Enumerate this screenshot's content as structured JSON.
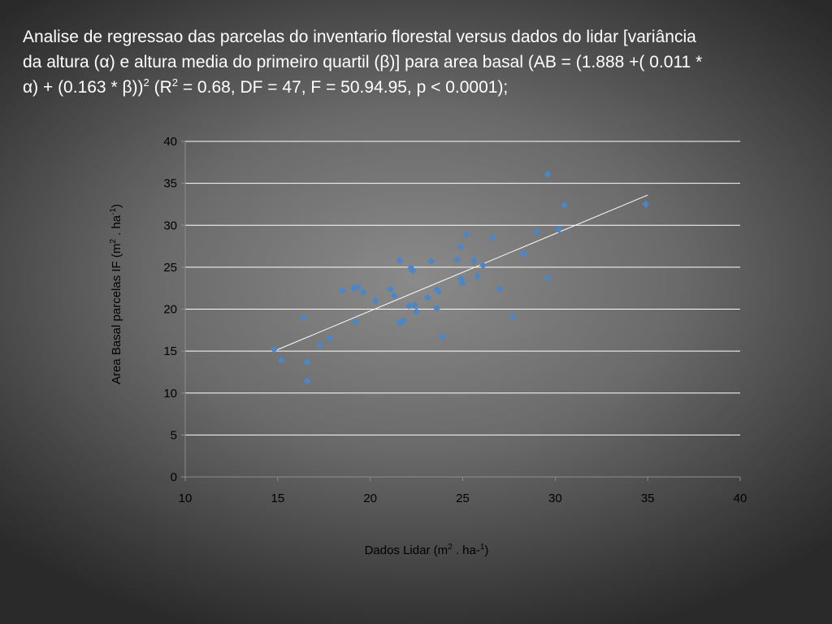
{
  "slide": {
    "title_line1": "Analise de regressao  das parcelas do inventario florestal  versus dados do lidar [variância",
    "title_line2": "da altura (α) e altura media do primeiro quartil (β)] para area basal (AB = (1.888 +( 0.011 *",
    "title_line3_a": "α) + (0.163 * β))",
    "title_line3_sup": "2",
    "title_line3_b": " (R",
    "title_line3_sup2": "2",
    "title_line3_c": " = 0.68, DF = 47, F = 50.94.95, p < 0.0001);"
  },
  "chart_data": {
    "type": "scatter",
    "title": "",
    "xlabel_main": "Dados Lidar  (m",
    "xlabel_sup1": "2",
    "xlabel_mid": " . ha-",
    "xlabel_sup2": "1",
    "xlabel_end": ")",
    "ylabel_main": "Area Basal  parcelas  IF  (m",
    "ylabel_sup1": "2",
    "ylabel_mid": " . ha",
    "ylabel_sup2": "-1",
    "ylabel_end": ")",
    "xlim": [
      10,
      40
    ],
    "ylim": [
      0,
      40
    ],
    "xticks": [
      10,
      15,
      20,
      25,
      30,
      35,
      40
    ],
    "yticks": [
      0,
      5,
      10,
      15,
      20,
      25,
      30,
      35,
      40
    ],
    "grid": "horizontal",
    "marker_color": "#4a86c8",
    "trendline_color": "#ffffff",
    "trendline": {
      "x": [
        14.8,
        35.0
      ],
      "y": [
        15.0,
        33.6
      ]
    },
    "points": [
      [
        14.8,
        15.2
      ],
      [
        15.2,
        13.9
      ],
      [
        16.4,
        18.9
      ],
      [
        16.6,
        13.7
      ],
      [
        16.6,
        11.4
      ],
      [
        17.3,
        15.7
      ],
      [
        17.8,
        16.5
      ],
      [
        18.5,
        22.2
      ],
      [
        19.1,
        22.5
      ],
      [
        19.2,
        18.5
      ],
      [
        19.3,
        22.6
      ],
      [
        19.6,
        22.0
      ],
      [
        20.3,
        21.0
      ],
      [
        21.1,
        22.4
      ],
      [
        21.3,
        21.6
      ],
      [
        21.6,
        25.8
      ],
      [
        21.6,
        18.4
      ],
      [
        21.8,
        18.6
      ],
      [
        22.1,
        20.4
      ],
      [
        22.2,
        24.9
      ],
      [
        22.3,
        24.6
      ],
      [
        22.4,
        20.5
      ],
      [
        22.5,
        19.7
      ],
      [
        23.1,
        21.4
      ],
      [
        23.3,
        25.7
      ],
      [
        23.6,
        22.3
      ],
      [
        23.6,
        20.1
      ],
      [
        23.7,
        22.1
      ],
      [
        23.9,
        16.7
      ],
      [
        24.7,
        25.9
      ],
      [
        24.9,
        27.4
      ],
      [
        24.9,
        23.6
      ],
      [
        25.0,
        23.1
      ],
      [
        25.2,
        28.9
      ],
      [
        25.6,
        25.8
      ],
      [
        25.8,
        23.9
      ],
      [
        26.1,
        25.2
      ],
      [
        26.6,
        28.5
      ],
      [
        27.0,
        22.4
      ],
      [
        27.7,
        19.1
      ],
      [
        28.3,
        26.6
      ],
      [
        29.0,
        29.2
      ],
      [
        29.6,
        36.1
      ],
      [
        29.6,
        23.7
      ],
      [
        30.2,
        29.5
      ],
      [
        30.5,
        32.4
      ],
      [
        34.9,
        32.5
      ]
    ]
  }
}
